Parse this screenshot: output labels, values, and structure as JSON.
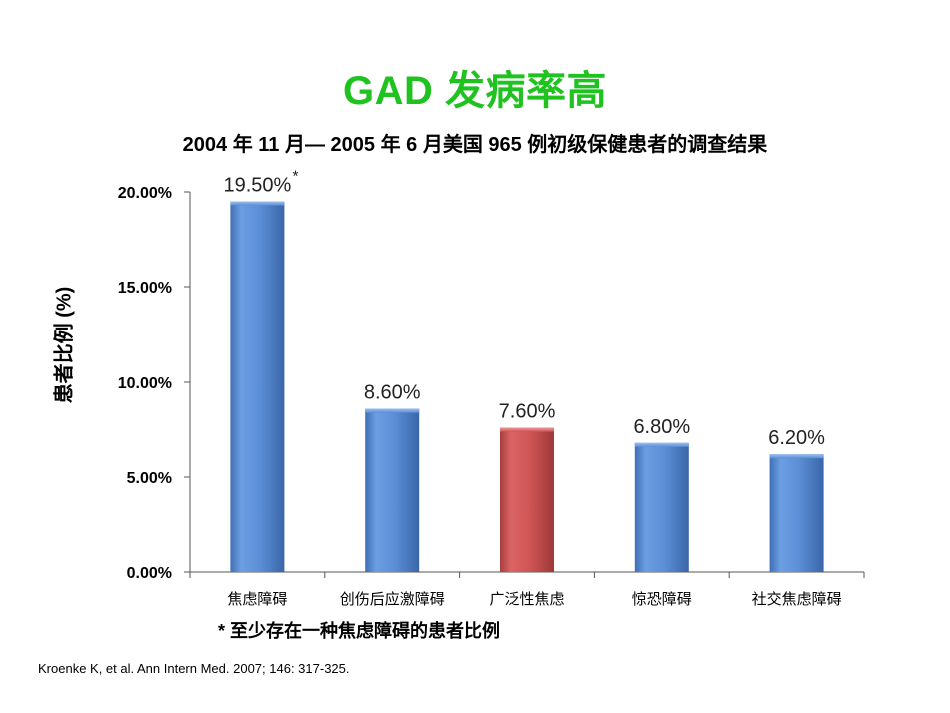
{
  "colors": {
    "title": "#1fc21f",
    "bar_blue": "#5b8ed6",
    "bar_red": "#d05555"
  },
  "chart_data": {
    "type": "bar",
    "title": "GAD 发病率高",
    "subtitle": "2004 年 11 月— 2005 年 6 月美国 965 例初级保健患者的调查结果",
    "xlabel": "",
    "ylabel": "患者比例 (%)",
    "categories": [
      "焦虑障碍",
      "创伤后应激障碍",
      "广泛性焦虑",
      "惊恐障碍",
      "社交焦虑障碍"
    ],
    "values": [
      19.5,
      8.6,
      7.6,
      6.8,
      6.2
    ],
    "data_labels": [
      "19.50%",
      "8.60%",
      "7.60%",
      "6.80%",
      "6.20%"
    ],
    "data_label_marks": [
      "*",
      "",
      "",
      "",
      ""
    ],
    "highlight_index": 2,
    "ylim": [
      0,
      20
    ],
    "yticks": [
      0,
      5,
      10,
      15,
      20
    ],
    "ytick_labels": [
      "0.00%",
      "5.00%",
      "10.00%",
      "15.00%",
      "20.00%"
    ],
    "grid": false,
    "legend": "none"
  },
  "footnote": "* 至少存在一种焦虑障碍的患者比例",
  "citation": "Kroenke K, et al. Ann Intern Med. 2007; 146: 317-325."
}
